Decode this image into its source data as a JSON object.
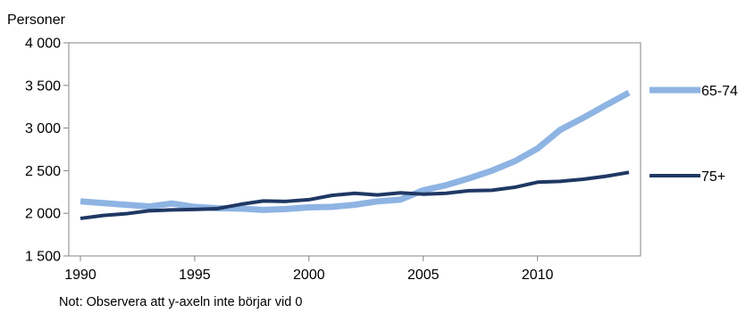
{
  "chart_data": {
    "type": "line",
    "ylabel": "Personer",
    "note": "Not: Observera att y-axeln inte börjar vid 0",
    "ylim": [
      1500,
      4000
    ],
    "xlim": [
      1990,
      2014
    ],
    "y_ticks": [
      {
        "value": 1500,
        "label": "1 500"
      },
      {
        "value": 2000,
        "label": "2 000"
      },
      {
        "value": 2500,
        "label": "2 500"
      },
      {
        "value": 3000,
        "label": "3 000"
      },
      {
        "value": 3500,
        "label": "3 500"
      },
      {
        "value": 4000,
        "label": "4 000"
      }
    ],
    "x_ticks": [
      {
        "value": 1990,
        "label": "1990"
      },
      {
        "value": 1995,
        "label": "1995"
      },
      {
        "value": 2000,
        "label": "2000"
      },
      {
        "value": 2005,
        "label": "2005"
      },
      {
        "value": 2010,
        "label": "2010"
      }
    ],
    "x": [
      1990,
      1991,
      1992,
      1993,
      1994,
      1995,
      1996,
      1997,
      1998,
      1999,
      2000,
      2001,
      2002,
      2003,
      2004,
      2005,
      2006,
      2007,
      2008,
      2009,
      2010,
      2011,
      2012,
      2013,
      2014
    ],
    "grid": false,
    "legend_position": "right",
    "series": [
      {
        "name": "65-74",
        "color": "#8eb4e3",
        "values": [
          2140,
          2120,
          2100,
          2080,
          2115,
          2075,
          2060,
          2055,
          2040,
          2050,
          2070,
          2075,
          2100,
          2140,
          2160,
          2270,
          2330,
          2410,
          2500,
          2610,
          2760,
          2980,
          3120,
          3270,
          3415
        ]
      },
      {
        "name": "75+",
        "color": "#1f3864",
        "values": [
          1940,
          1975,
          1995,
          2030,
          2040,
          2045,
          2055,
          2105,
          2145,
          2140,
          2160,
          2210,
          2235,
          2215,
          2240,
          2225,
          2235,
          2265,
          2270,
          2305,
          2365,
          2375,
          2400,
          2435,
          2480
        ]
      }
    ]
  }
}
